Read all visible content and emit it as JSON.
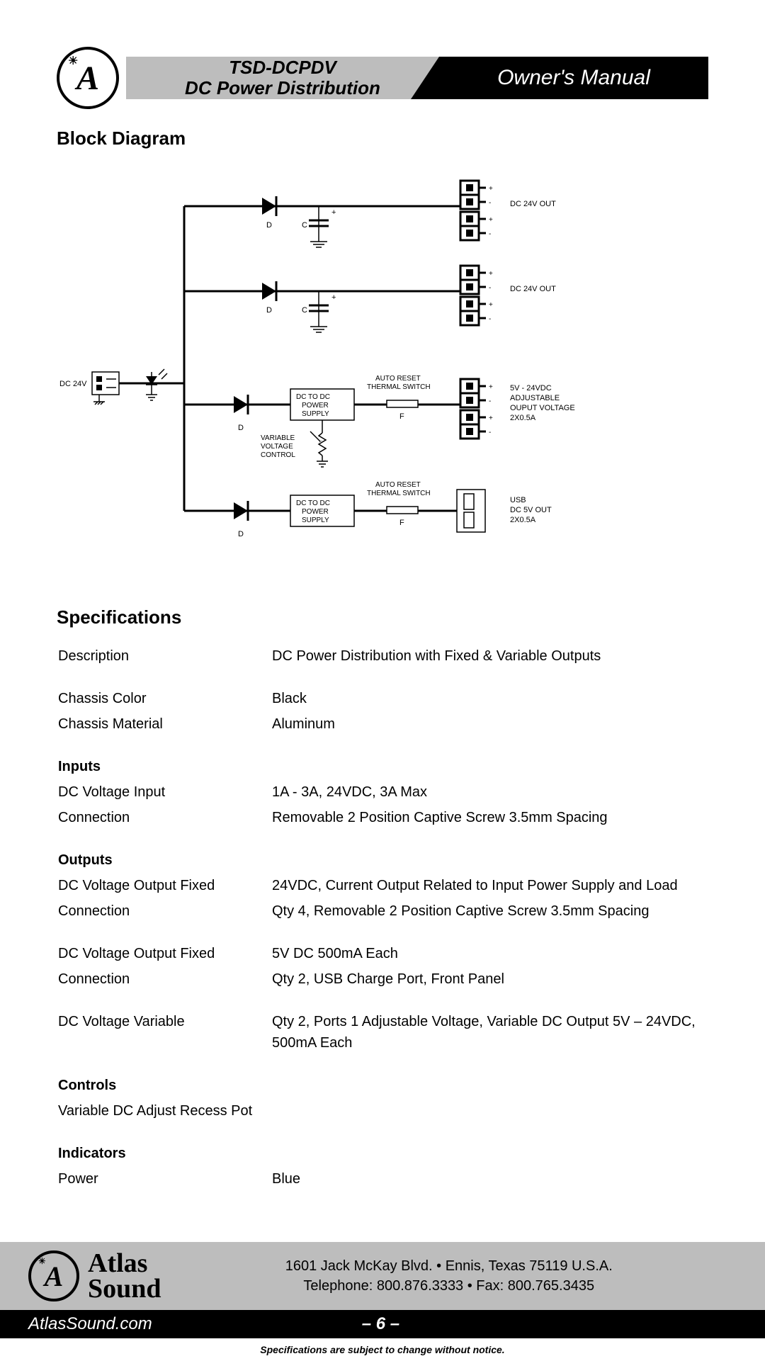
{
  "header": {
    "product": "TSD-DCPDV",
    "subtitle": "DC Power Distribution",
    "doc_type": "Owner's Manual"
  },
  "sections": {
    "block_diagram": "Block Diagram",
    "specifications": "Specifications"
  },
  "diagram": {
    "input_label": "DC 24V",
    "branch1": {
      "d": "D",
      "c": "C",
      "plus": "+",
      "out": "DC 24V OUT"
    },
    "branch2": {
      "d": "D",
      "c": "C",
      "plus": "+",
      "out": "DC 24V OUT"
    },
    "branch3": {
      "d": "D",
      "box": "DC TO DC\nPOWER\nSUPPLY",
      "var": "VARIABLE\nVOLTAGE\nCONTROL",
      "thermal": "AUTO RESET\nTHERMAL SWITCH",
      "f": "F",
      "out": "5V - 24VDC\nADJUSTABLE\nOUPUT VOLTAGE\n2X0.5A"
    },
    "branch4": {
      "d": "D",
      "box": "DC TO DC\nPOWER\nSUPPLY",
      "thermal": "AUTO RESET\nTHERMAL SWITCH",
      "f": "F",
      "out": "USB\nDC 5V OUT\n2X0.5A"
    }
  },
  "specs": [
    {
      "k": "Description",
      "v": "DC Power Distribution with Fixed & Variable Outputs",
      "spacer_after": true
    },
    {
      "k": "Chassis Color",
      "v": "Black"
    },
    {
      "k": "Chassis Material",
      "v": "Aluminum",
      "spacer_after": true
    },
    {
      "k": "Inputs",
      "v": "",
      "bold": true
    },
    {
      "k": "DC Voltage Input",
      "v": "1A - 3A, 24VDC, 3A Max"
    },
    {
      "k": "Connection",
      "v": "Removable 2 Position Captive Screw 3.5mm Spacing",
      "spacer_after": true
    },
    {
      "k": "Outputs",
      "v": "",
      "bold": true
    },
    {
      "k": "DC Voltage Output Fixed",
      "v": "24VDC, Current Output Related to Input Power Supply and Load"
    },
    {
      "k": "Connection",
      "v": "Qty 4, Removable 2 Position Captive Screw 3.5mm Spacing",
      "spacer_after": true
    },
    {
      "k": "DC Voltage Output Fixed",
      "v": "5V DC 500mA Each"
    },
    {
      "k": "Connection",
      "v": "Qty 2, USB Charge Port, Front Panel",
      "spacer_after": true
    },
    {
      "k": "DC Voltage Variable",
      "v": "Qty 2, Ports 1 Adjustable Voltage, Variable DC Output 5V – 24VDC, 500mA Each",
      "spacer_after": true
    },
    {
      "k": "Controls",
      "v": "",
      "bold": true
    },
    {
      "k": "Variable DC Adjust Recess Pot",
      "v": "",
      "spacer_after": true
    },
    {
      "k": "Indicators",
      "v": "",
      "bold": true
    },
    {
      "k": "Power",
      "v": "Blue"
    }
  ],
  "footer": {
    "brand": "Atlas\nSound",
    "address": "1601 Jack McKay Blvd. • Ennis, Texas 75119  U.S.A.",
    "phone": "Telephone: 800.876.3333 • Fax: 800.765.3435",
    "url": "AtlasSound.com",
    "page": "– 6 –",
    "disclaimer": "Specifications are subject to change without notice."
  }
}
